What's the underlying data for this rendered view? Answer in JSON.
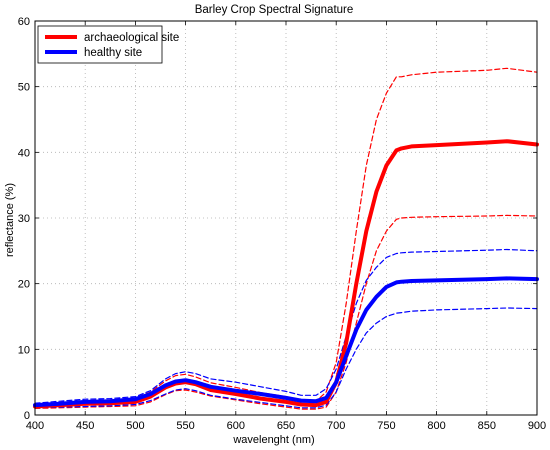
{
  "chart_data": {
    "type": "line",
    "title": "Barley Crop Spectral Signature",
    "xlabel": "wavelenght (nm)",
    "ylabel": "reflectance (%)",
    "xlim": [
      400,
      900
    ],
    "ylim": [
      0,
      60
    ],
    "xticks": [
      400,
      450,
      500,
      550,
      600,
      650,
      700,
      750,
      800,
      850,
      900
    ],
    "yticks": [
      0,
      10,
      20,
      30,
      40,
      50,
      60
    ],
    "grid": true,
    "legend_position": "top-left",
    "x": [
      400,
      425,
      450,
      475,
      500,
      515,
      530,
      540,
      550,
      560,
      575,
      600,
      625,
      650,
      665,
      680,
      690,
      700,
      710,
      720,
      730,
      740,
      750,
      760,
      765,
      775,
      800,
      850,
      870,
      900
    ],
    "series": [
      {
        "name": "archaeological site",
        "color": "#ff0000",
        "style": "solid-thick",
        "legend": true,
        "values": [
          1.3,
          1.5,
          1.7,
          1.8,
          2.0,
          2.8,
          4.2,
          4.8,
          5.0,
          4.7,
          3.8,
          3.2,
          2.5,
          2.0,
          1.6,
          1.5,
          2.0,
          5.0,
          11.0,
          20.0,
          28.0,
          34.0,
          38.0,
          40.3,
          40.6,
          40.9,
          41.1,
          41.5,
          41.7,
          41.2
        ]
      },
      {
        "name": "healthy site",
        "color": "#0000ff",
        "style": "solid-thick",
        "legend": true,
        "values": [
          1.5,
          1.7,
          2.0,
          2.1,
          2.4,
          3.2,
          4.5,
          5.1,
          5.3,
          5.0,
          4.3,
          3.7,
          3.2,
          2.6,
          2.2,
          2.1,
          2.6,
          5.0,
          9.0,
          13.0,
          16.0,
          18.0,
          19.5,
          20.2,
          20.3,
          20.4,
          20.5,
          20.7,
          20.8,
          20.7
        ]
      },
      {
        "color": "#ff0000",
        "style": "dashed",
        "legend": false,
        "values": [
          1.6,
          1.9,
          2.2,
          2.3,
          2.6,
          3.5,
          5.2,
          6.0,
          6.2,
          5.8,
          4.9,
          4.2,
          3.4,
          2.8,
          2.3,
          2.1,
          3.5,
          8.0,
          17.0,
          28.0,
          38.0,
          45.0,
          49.0,
          51.5,
          51.5,
          51.8,
          52.2,
          52.5,
          52.8,
          52.2
        ]
      },
      {
        "color": "#ff0000",
        "style": "dashed",
        "legend": false,
        "values": [
          1.0,
          1.1,
          1.2,
          1.3,
          1.4,
          2.0,
          3.1,
          3.7,
          3.8,
          3.5,
          2.9,
          2.3,
          1.7,
          1.2,
          0.9,
          0.9,
          1.2,
          3.5,
          8.0,
          14.0,
          20.0,
          25.0,
          28.0,
          29.8,
          30.0,
          30.1,
          30.2,
          30.3,
          30.4,
          30.3
        ]
      },
      {
        "color": "#0000ff",
        "style": "dashed",
        "legend": false,
        "values": [
          1.8,
          2.1,
          2.4,
          2.5,
          2.8,
          3.7,
          5.5,
          6.3,
          6.6,
          6.3,
          5.5,
          5.0,
          4.3,
          3.6,
          3.0,
          3.0,
          4.0,
          7.0,
          12.0,
          17.0,
          20.5,
          22.5,
          24.0,
          24.6,
          24.7,
          24.8,
          24.9,
          25.1,
          25.2,
          25.0
        ]
      },
      {
        "color": "#0000ff",
        "style": "dashed",
        "legend": false,
        "values": [
          1.1,
          1.2,
          1.3,
          1.4,
          1.6,
          2.2,
          3.2,
          3.8,
          4.0,
          3.7,
          3.0,
          2.4,
          1.9,
          1.4,
          1.1,
          1.1,
          1.5,
          3.5,
          7.0,
          10.0,
          12.5,
          14.0,
          15.0,
          15.5,
          15.6,
          15.8,
          16.0,
          16.2,
          16.3,
          16.2
        ]
      }
    ]
  }
}
